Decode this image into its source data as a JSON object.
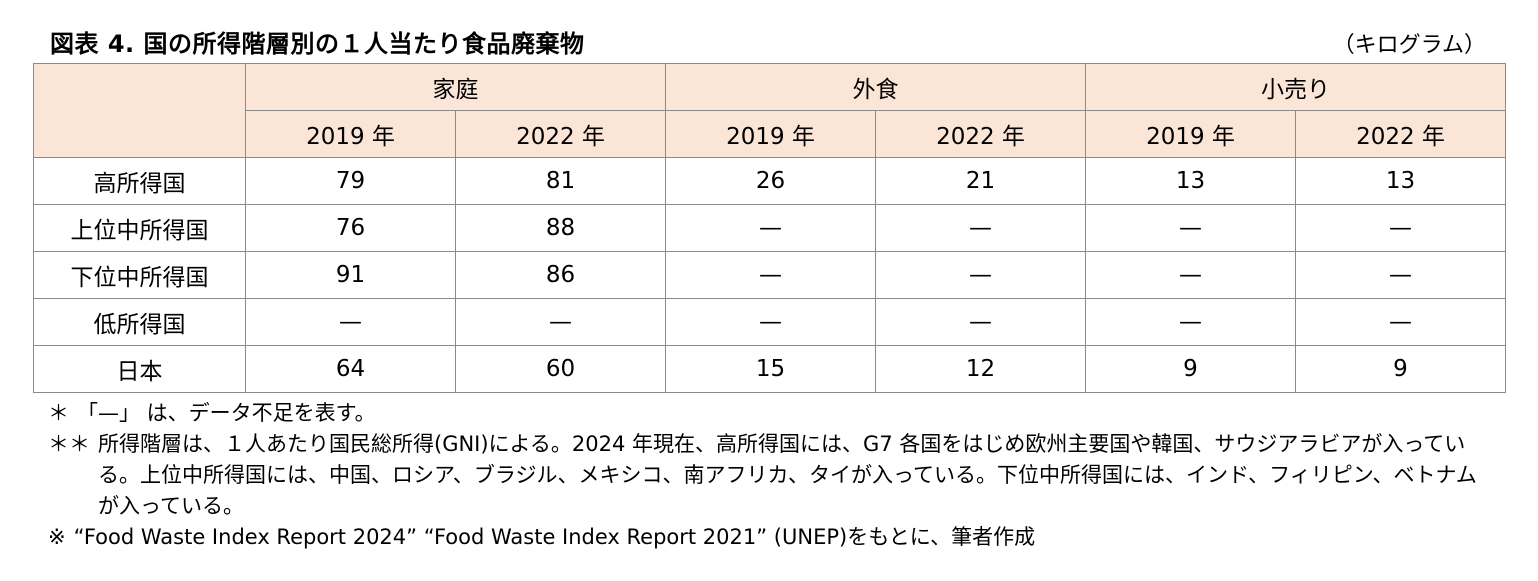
{
  "title": "図表 4.  国の所得階層別の１人当たり食品廃棄物",
  "unit": "（キログラム）",
  "table": {
    "groups": [
      "家庭",
      "外食",
      "小売り"
    ],
    "years": [
      "2019 年",
      "2022 年",
      "2019 年",
      "2022 年",
      "2019 年",
      "2022 年"
    ],
    "rows": [
      {
        "label": "高所得国",
        "values": [
          "79",
          "81",
          "26",
          "21",
          "13",
          "13"
        ]
      },
      {
        "label": "上位中所得国",
        "values": [
          "76",
          "88",
          "—",
          "—",
          "—",
          "—"
        ]
      },
      {
        "label": "下位中所得国",
        "values": [
          "91",
          "86",
          "—",
          "—",
          "—",
          "—"
        ]
      },
      {
        "label": "低所得国",
        "values": [
          "—",
          "—",
          "—",
          "—",
          "—",
          "—"
        ]
      },
      {
        "label": "日本",
        "values": [
          "64",
          "60",
          "15",
          "12",
          "9",
          "9"
        ]
      }
    ]
  },
  "notes": [
    {
      "mark": "＊",
      "text": "「—」 は、データ不足を表す。"
    },
    {
      "mark": "＊＊",
      "text": "所得階層は、１人あたり国民総所得(GNI)による。2024 年現在、高所得国には、G7 各国をはじめ欧州主要国や韓国、サウジアラビアが入っている。上位中所得国には、中国、ロシア、ブラジル、メキシコ、南アフリカ、タイが入っている。下位中所得国には、インド、フィリピン、ベトナムが入っている。"
    },
    {
      "mark": "※",
      "text": "“Food Waste Index Report 2024”  “Food Waste Index Report 2021” (UNEP)をもとに、筆者作成"
    }
  ]
}
